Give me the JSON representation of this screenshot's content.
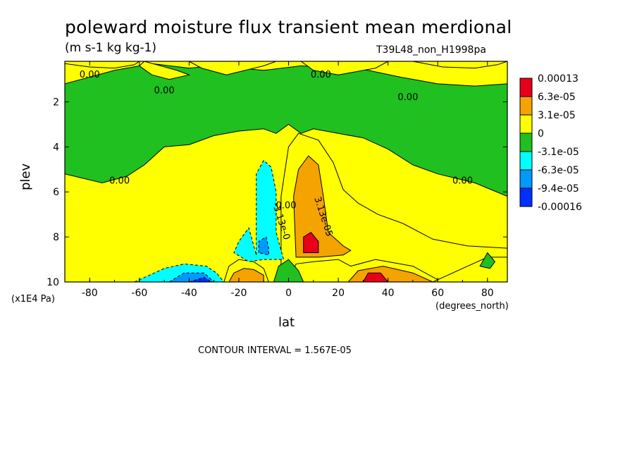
{
  "chart_data": {
    "type": "heatmap",
    "title": "poleward moisture flux transient mean merdional",
    "subtitle": "(m s-1 kg kg-1)",
    "run_id": "T39L48_non_H1998pa",
    "xlabel": "lat",
    "ylabel": "plev",
    "x_units": "(degrees_north)",
    "y_units": "(x1E4 Pa)",
    "xlim": [
      -90,
      88
    ],
    "ylim": [
      10,
      0.2
    ],
    "x_ticks": [
      -80,
      -60,
      -40,
      -20,
      0,
      20,
      40,
      60,
      80
    ],
    "y_ticks": [
      2,
      4,
      6,
      8,
      10
    ],
    "contour_interval_text": "CONTOUR INTERVAL = 1.567E-05",
    "legend": {
      "labels": [
        "0.00013",
        "6.3e-05",
        "3.1e-05",
        "0",
        "-3.1e-05",
        "-6.3e-05",
        "-9.4e-05",
        "-0.00016"
      ],
      "colors": [
        "#e8001a",
        "#f5a300",
        "#ffff00",
        "#1fc01f",
        "#00ffff",
        "#0099ff",
        "#0030ff"
      ]
    },
    "contour_labels": [
      {
        "text": "0.00",
        "lat": -80,
        "plev": 0.8
      },
      {
        "text": "0.00",
        "lat": -50,
        "plev": 1.5
      },
      {
        "text": "0.00",
        "lat": 13,
        "plev": 0.8
      },
      {
        "text": "0.00",
        "lat": 48,
        "plev": 1.8
      },
      {
        "text": "0.00",
        "lat": -68,
        "plev": 5.5
      },
      {
        "text": "0.00",
        "lat": 70,
        "plev": 5.5
      },
      {
        "text": "0.00",
        "lat": -1,
        "plev": 6.6
      },
      {
        "text": "-3.13e-0",
        "lat": -3,
        "plev": 7.3
      },
      {
        "text": "3.13e-05",
        "lat": 14,
        "plev": 7.1
      }
    ],
    "regions": [
      {
        "level": "neg1",
        "points": [
          [
            -90,
            1.2
          ],
          [
            -70,
            0.6
          ],
          [
            -55,
            0.3
          ],
          [
            -40,
            0.5
          ],
          [
            -30,
            0.4
          ],
          [
            -10,
            0.6
          ],
          [
            5,
            0.4
          ],
          [
            20,
            0.5
          ],
          [
            32,
            0.6
          ],
          [
            45,
            0.9
          ],
          [
            60,
            1.2
          ],
          [
            75,
            1.3
          ],
          [
            88,
            1.2
          ],
          [
            88,
            6.2
          ],
          [
            75,
            5.6
          ],
          [
            60,
            5.2
          ],
          [
            50,
            4.8
          ],
          [
            40,
            4.1
          ],
          [
            30,
            3.6
          ],
          [
            20,
            3.4
          ],
          [
            10,
            3.2
          ],
          [
            5,
            3.4
          ],
          [
            0,
            3.0
          ],
          [
            -5,
            3.4
          ],
          [
            -10,
            3.2
          ],
          [
            -20,
            3.3
          ],
          [
            -30,
            3.5
          ],
          [
            -40,
            3.9
          ],
          [
            -50,
            4.0
          ],
          [
            -58,
            4.8
          ],
          [
            -65,
            5.3
          ],
          [
            -75,
            5.6
          ],
          [
            -90,
            5.2
          ]
        ]
      },
      {
        "level": "pos1",
        "points": [
          [
            -58,
            0.2
          ],
          [
            -45,
            0.6
          ],
          [
            -40,
            0.8
          ],
          [
            -48,
            1.0
          ],
          [
            -55,
            0.8
          ],
          [
            -60,
            0.4
          ]
        ]
      },
      {
        "level": "pos1",
        "points": [
          [
            -40,
            0.2
          ],
          [
            -35,
            0.5
          ],
          [
            -25,
            0.8
          ],
          [
            -10,
            0.4
          ],
          [
            -5,
            0.2
          ]
        ]
      },
      {
        "level": "pos1",
        "points": [
          [
            -90,
            0.3
          ],
          [
            -80,
            0.45
          ],
          [
            -70,
            0.5
          ],
          [
            -62,
            0.35
          ],
          [
            -60,
            0.2
          ],
          [
            -90,
            0.2
          ]
        ]
      },
      {
        "level": "pos1",
        "points": [
          [
            5,
            0.2
          ],
          [
            10,
            0.6
          ],
          [
            20,
            0.8
          ],
          [
            35,
            0.5
          ],
          [
            40,
            0.2
          ]
        ]
      },
      {
        "level": "pos1",
        "points": [
          [
            50,
            0.2
          ],
          [
            62,
            0.45
          ],
          [
            75,
            0.5
          ],
          [
            84,
            0.35
          ],
          [
            88,
            0.2
          ]
        ]
      },
      {
        "level": "pos1",
        "points": [
          [
            -3,
            10
          ],
          [
            -3,
            6.2
          ],
          [
            0,
            4.0
          ],
          [
            4,
            3.4
          ],
          [
            12,
            3.7
          ],
          [
            18,
            4.7
          ],
          [
            22,
            5.9
          ],
          [
            28,
            6.5
          ],
          [
            36,
            7.0
          ],
          [
            46,
            7.4
          ],
          [
            58,
            8.1
          ],
          [
            72,
            8.4
          ],
          [
            88,
            8.5
          ],
          [
            88,
            10
          ],
          [
            70,
            10
          ],
          [
            60,
            9.9
          ],
          [
            50,
            9.3
          ],
          [
            35,
            9.0
          ],
          [
            25,
            9.3
          ],
          [
            20,
            9.0
          ],
          [
            10,
            9.1
          ],
          [
            3,
            9.2
          ],
          [
            0,
            10
          ]
        ]
      },
      {
        "level": "pos1",
        "points": [
          [
            -26,
            10
          ],
          [
            -24,
            9.3
          ],
          [
            -20,
            9.0
          ],
          [
            -14,
            9.1
          ],
          [
            -10,
            9.4
          ],
          [
            -8,
            10
          ]
        ]
      },
      {
        "level": "pos1",
        "points": [
          [
            58,
            10
          ],
          [
            72,
            9.3
          ],
          [
            80,
            8.9
          ],
          [
            88,
            8.9
          ],
          [
            88,
            10
          ]
        ]
      },
      {
        "level": "pos2",
        "points": [
          [
            3,
            8.9
          ],
          [
            2,
            6.2
          ],
          [
            4,
            5.0
          ],
          [
            8,
            4.4
          ],
          [
            12,
            4.8
          ],
          [
            14,
            6.2
          ],
          [
            16,
            7.8
          ],
          [
            22,
            8.4
          ],
          [
            25,
            8.6
          ],
          [
            22,
            8.8
          ],
          [
            12,
            8.9
          ]
        ]
      },
      {
        "level": "pos2",
        "points": [
          [
            -24,
            10
          ],
          [
            -22,
            9.6
          ],
          [
            -18,
            9.4
          ],
          [
            -14,
            9.45
          ],
          [
            -10,
            9.7
          ],
          [
            -10,
            10
          ]
        ]
      },
      {
        "level": "pos2",
        "points": [
          [
            24,
            10
          ],
          [
            28,
            9.5
          ],
          [
            38,
            9.3
          ],
          [
            50,
            9.6
          ],
          [
            58,
            10
          ]
        ]
      },
      {
        "level": "pos3",
        "points": [
          [
            6,
            8.7
          ],
          [
            6,
            8.0
          ],
          [
            9,
            7.8
          ],
          [
            12,
            8.2
          ],
          [
            12,
            8.7
          ]
        ]
      },
      {
        "level": "pos3",
        "points": [
          [
            30,
            10
          ],
          [
            32,
            9.6
          ],
          [
            37,
            9.6
          ],
          [
            40,
            10
          ]
        ]
      },
      {
        "level": "neg2",
        "points": [
          [
            -13,
            8.8
          ],
          [
            -13,
            5.2
          ],
          [
            -10,
            4.6
          ],
          [
            -7,
            4.9
          ],
          [
            -5,
            6.0
          ],
          [
            -5,
            7.8
          ],
          [
            -3,
            8.6
          ],
          [
            -2,
            9.0
          ],
          [
            -10,
            9.0
          ],
          [
            -16,
            9.1
          ],
          [
            -22,
            8.7
          ],
          [
            -20,
            8.2
          ],
          [
            -16,
            7.6
          ]
        ]
      },
      {
        "level": "neg2",
        "points": [
          [
            -62,
            10
          ],
          [
            -50,
            9.4
          ],
          [
            -42,
            9.2
          ],
          [
            -33,
            9.3
          ],
          [
            -29,
            9.6
          ],
          [
            -26,
            10
          ]
        ]
      },
      {
        "level": "neg3",
        "points": [
          [
            -12,
            8.7
          ],
          [
            -12,
            8.2
          ],
          [
            -9,
            8.0
          ],
          [
            -8,
            8.5
          ],
          [
            -8,
            8.8
          ]
        ]
      },
      {
        "level": "neg3",
        "points": [
          [
            -48,
            10
          ],
          [
            -42,
            9.6
          ],
          [
            -34,
            9.6
          ],
          [
            -30,
            10
          ]
        ]
      },
      {
        "level": "neg4",
        "points": [
          [
            -40,
            10
          ],
          [
            -34,
            9.8
          ],
          [
            -31,
            10
          ]
        ]
      },
      {
        "level": "neg1",
        "points": [
          [
            -6,
            10
          ],
          [
            -4,
            9.3
          ],
          [
            0,
            9.0
          ],
          [
            4,
            9.5
          ],
          [
            6,
            10
          ]
        ]
      },
      {
        "level": "neg1",
        "points": [
          [
            77,
            9.3
          ],
          [
            80,
            8.7
          ],
          [
            83,
            9.1
          ],
          [
            81,
            9.4
          ]
        ]
      }
    ]
  }
}
